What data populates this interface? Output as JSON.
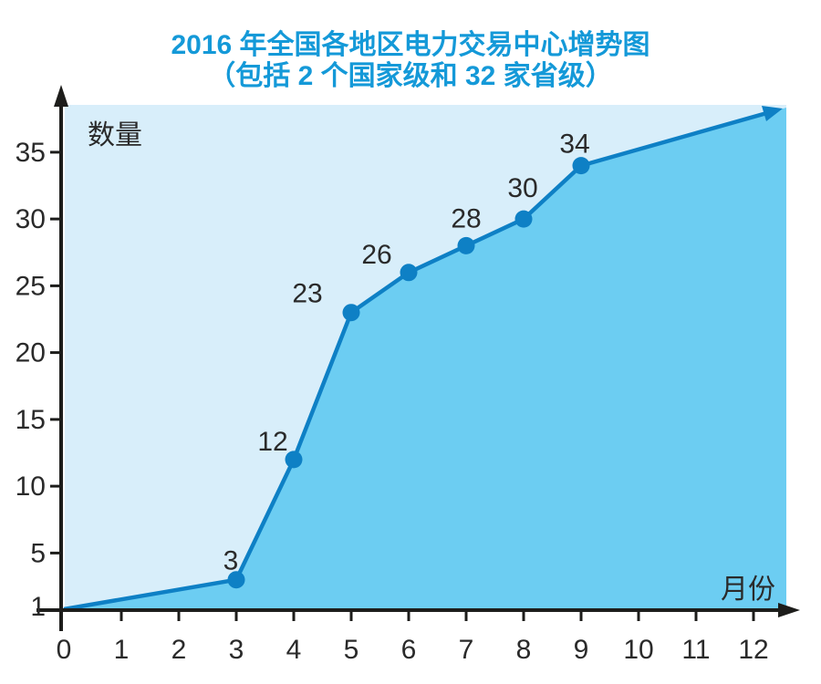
{
  "header": {
    "title": "2016 年全国各地区电力交易中心增势图",
    "subtitle": "（包括 2 个国家级和 32 家省级）"
  },
  "chart_data": {
    "type": "area",
    "title": "2016 年全国各地区电力交易中心增势图（包括 2 个国家级和 32 家省级）",
    "x_axis": {
      "label": "月份",
      "ticks": [
        0,
        1,
        2,
        3,
        4,
        5,
        6,
        7,
        8,
        9,
        10,
        11,
        12
      ],
      "range": [
        0,
        12
      ]
    },
    "y_axis": {
      "label": "数量",
      "ticks": [
        1,
        5,
        10,
        15,
        20,
        25,
        30,
        35
      ],
      "range": [
        1,
        38
      ]
    },
    "points": [
      {
        "month": 3,
        "value": 3,
        "label": "3"
      },
      {
        "month": 4,
        "value": 12,
        "label": "12"
      },
      {
        "month": 5,
        "value": 23,
        "label": "23"
      },
      {
        "month": 6,
        "value": 26,
        "label": "26"
      },
      {
        "month": 7,
        "value": 28,
        "label": "28"
      },
      {
        "month": 8,
        "value": 30,
        "label": "30"
      },
      {
        "month": 9,
        "value": 34,
        "label": "34"
      }
    ],
    "legend": null,
    "grid": false,
    "trend_arrow": true,
    "colors": {
      "title": "#1499D8",
      "line": "#0E80C5",
      "marker": "#0E80C5",
      "area_fill": "#6CCDF2",
      "plot_background": "#D8EEFA",
      "axis": "#1D1D1B",
      "text": "#2A2A2A"
    }
  }
}
